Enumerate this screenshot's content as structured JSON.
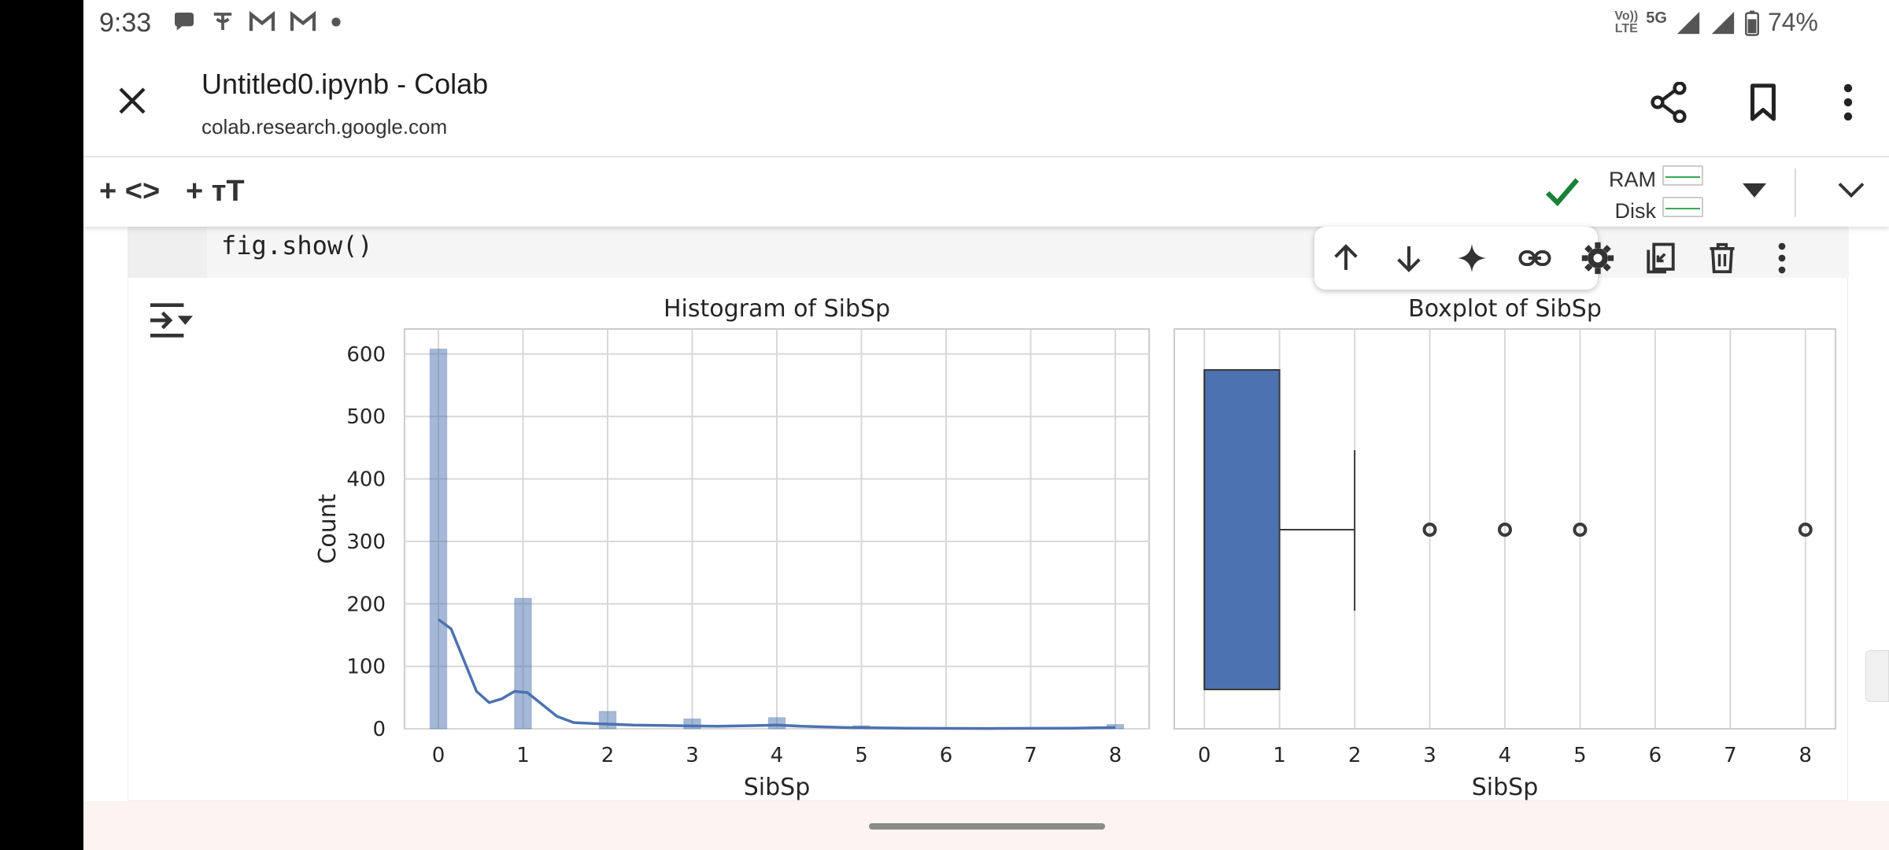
{
  "status_bar": {
    "time": "9:33",
    "left_icons": [
      "chat-bubble-icon",
      "pe-app-icon",
      "gmail-icon",
      "gmail-icon",
      "dot-icon"
    ],
    "network_tag_top": "Vo))",
    "network_tag_bottom": "LTE",
    "network_type": "5G",
    "battery": "74%"
  },
  "browser": {
    "title": "Untitled0.ipynb - Colab",
    "url": "colab.research.google.com"
  },
  "colab_toolbar": {
    "add_code": "+ <>",
    "add_text": "+ ᴛT",
    "ram_label": "RAM",
    "disk_label": "Disk"
  },
  "cell": {
    "code": "fig.show()"
  },
  "chart_data": [
    {
      "type": "bar",
      "title": "Histogram of SibSp",
      "xlabel": "SibSp",
      "ylabel": "Count",
      "x_ticks": [
        "0",
        "1",
        "2",
        "3",
        "4",
        "5",
        "6",
        "7",
        "8"
      ],
      "y_ticks": [
        "0",
        "100",
        "200",
        "300",
        "400",
        "500",
        "600"
      ],
      "xlim": [
        -0.4,
        8.4
      ],
      "ylim": [
        0,
        640
      ],
      "bars": [
        {
          "x": 0,
          "value": 608
        },
        {
          "x": 1,
          "value": 209
        },
        {
          "x": 2,
          "value": 28
        },
        {
          "x": 3,
          "value": 16
        },
        {
          "x": 4,
          "value": 18
        },
        {
          "x": 5,
          "value": 5
        },
        {
          "x": 8,
          "value": 7
        }
      ],
      "kde": [
        [
          0,
          175
        ],
        [
          0.15,
          160
        ],
        [
          0.3,
          110
        ],
        [
          0.45,
          60
        ],
        [
          0.6,
          42
        ],
        [
          0.75,
          48
        ],
        [
          0.9,
          60
        ],
        [
          1.05,
          58
        ],
        [
          1.2,
          42
        ],
        [
          1.4,
          20
        ],
        [
          1.6,
          10
        ],
        [
          1.9,
          8
        ],
        [
          2.3,
          6
        ],
        [
          2.8,
          5
        ],
        [
          3.3,
          4
        ],
        [
          3.7,
          5
        ],
        [
          4.0,
          6
        ],
        [
          4.3,
          4
        ],
        [
          4.8,
          2
        ],
        [
          5.5,
          1
        ],
        [
          6.5,
          0.5
        ],
        [
          7.5,
          1
        ],
        [
          8,
          2
        ]
      ],
      "color": "#4c72b0",
      "grid": true
    },
    {
      "type": "boxplot",
      "title": "Boxplot of SibSp",
      "xlabel": "SibSp",
      "x_ticks": [
        "0",
        "1",
        "2",
        "3",
        "4",
        "5",
        "6",
        "7",
        "8"
      ],
      "xlim": [
        -0.4,
        8.4
      ],
      "q1": 0,
      "median": 0,
      "q3": 1,
      "whisker_low": 0,
      "whisker_high": 2,
      "outliers": [
        3,
        4,
        5,
        8
      ],
      "color": "#4c72b0",
      "grid": true
    }
  ]
}
